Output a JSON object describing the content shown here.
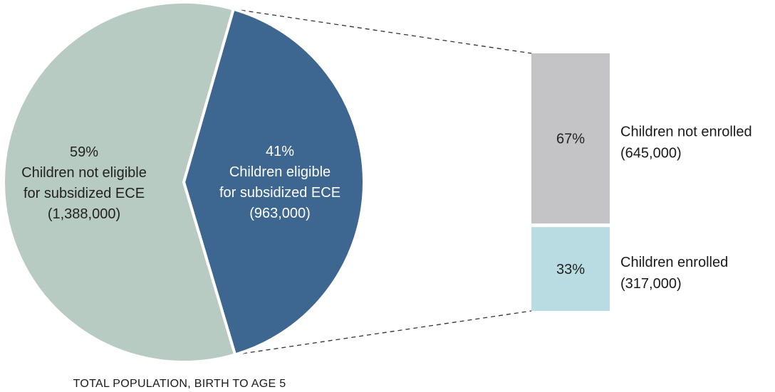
{
  "chart_data": {
    "type": "pie",
    "caption": "TOTAL POPULATION, BIRTH TO AGE 5",
    "colors": {
      "not_eligible": "#b7cbc2",
      "eligible": "#3d6690",
      "not_enrolled": "#c4c4c6",
      "enrolled": "#b9dbe2",
      "connector": "#333333"
    },
    "pie": {
      "slices": [
        {
          "key": "eligible",
          "percent_label": "41%",
          "line1": "Children eligible",
          "line2": "for subsidized ECE",
          "count_label": "(963,000)",
          "value": 963000
        },
        {
          "key": "not_eligible",
          "percent_label": "59%",
          "line1": "Children not eligible",
          "line2": "for subsidized ECE",
          "count_label": "(1,388,000)",
          "value": 1388000
        }
      ]
    },
    "breakdown": {
      "segments": [
        {
          "key": "not_enrolled",
          "percent_label": "67%",
          "share": 67,
          "legend_line1": "Children not enrolled",
          "legend_line2": "(645,000)",
          "value": 645000
        },
        {
          "key": "enrolled",
          "percent_label": "33%",
          "share": 33,
          "legend_line1": "Children enrolled",
          "legend_line2": "(317,000)",
          "value": 317000
        }
      ]
    }
  }
}
